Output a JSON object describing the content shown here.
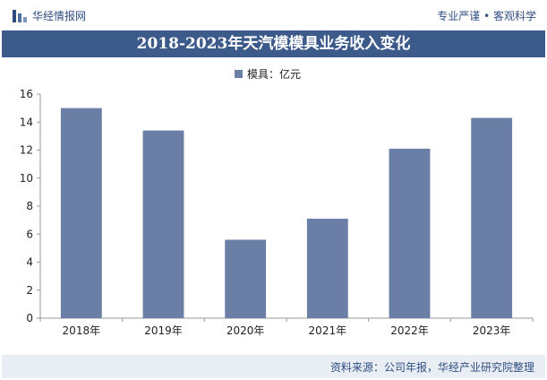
{
  "header": {
    "brand": "华经情报网",
    "tagline": "专业严谨 • 客观科学"
  },
  "footer": {
    "source": "资料来源：公司年报，华经产业研究院整理"
  },
  "colors": {
    "bar": "#6a7ea6",
    "title_bg": "#3c5a8a",
    "brand": "#2f4e80"
  },
  "chart_data": {
    "type": "bar",
    "title": "2018-2023年天汽模模具业务收入变化",
    "categories": [
      "2018年",
      "2019年",
      "2020年",
      "2021年",
      "2022年",
      "2023年"
    ],
    "series": [
      {
        "name": "模具：亿元",
        "values": [
          15.0,
          13.4,
          5.6,
          7.1,
          12.1,
          14.3
        ]
      }
    ],
    "ylim": [
      0,
      16
    ],
    "yticks": [
      0,
      2,
      4,
      6,
      8,
      10,
      12,
      14,
      16
    ],
    "legend": "top-center",
    "grid": false
  }
}
